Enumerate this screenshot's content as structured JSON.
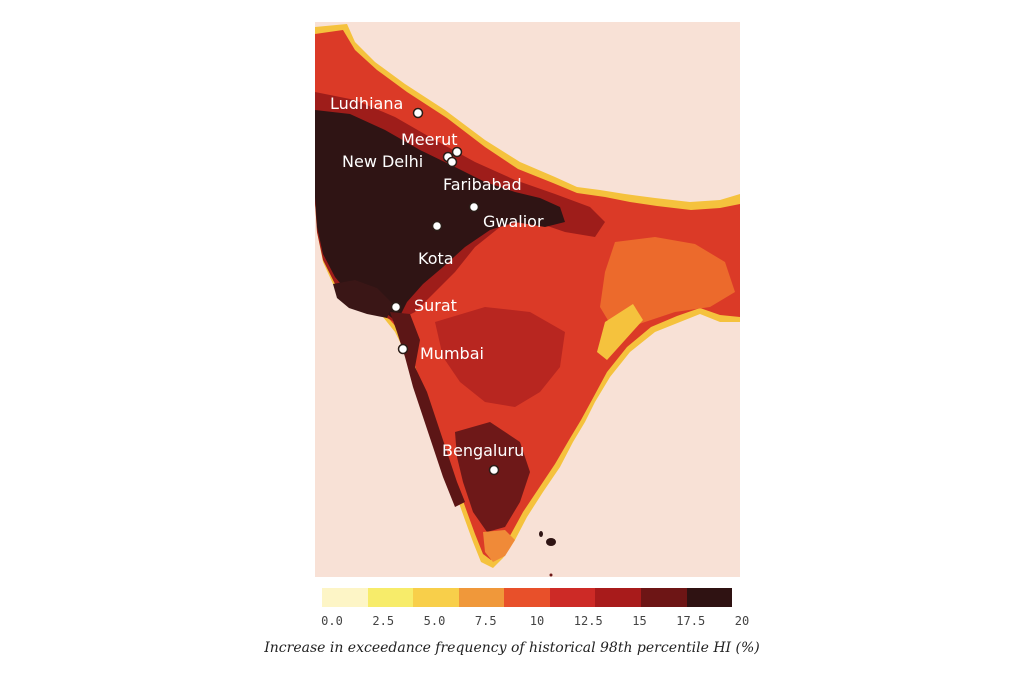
{
  "map": {
    "background_color": "#f8e1d6",
    "cities": [
      {
        "name": "Ludhiana"
      },
      {
        "name": "Meerut"
      },
      {
        "name": "New Delhi"
      },
      {
        "name": "Faribabad"
      },
      {
        "name": "Gwalior"
      },
      {
        "name": "Kota"
      },
      {
        "name": "Surat"
      },
      {
        "name": "Mumbai"
      },
      {
        "name": "Bengaluru"
      }
    ]
  },
  "legend": {
    "title": "Increase in exceedance frequency of historical 98th percentile HI (%)",
    "ticks": [
      "0.0",
      "2.5",
      "5.0",
      "7.5",
      "10",
      "12.5",
      "15",
      "17.5",
      "20"
    ],
    "colors": [
      "#fdf5c6",
      "#f7ec6a",
      "#f8cf4a",
      "#f0983a",
      "#e8502a",
      "#cd2a26",
      "#a81b1b",
      "#6d1515",
      "#2f1212"
    ]
  }
}
